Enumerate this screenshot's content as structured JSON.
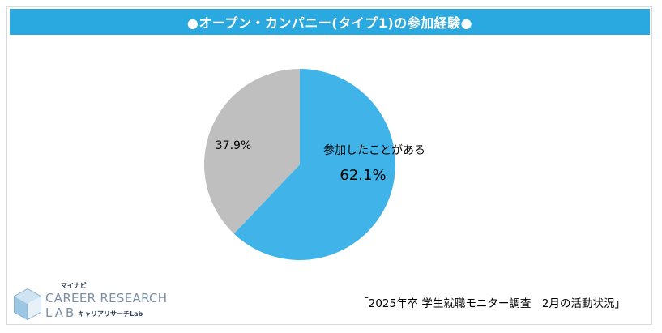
{
  "chart_data": {
    "type": "pie",
    "title": "●オープン・カンパニー(タイプ1)の参加経験●",
    "slices": [
      {
        "label": "参加したことがある",
        "value": 62.1,
        "value_label": "62.1%",
        "color": "#40b4e8"
      },
      {
        "label": "",
        "value": 37.9,
        "value_label": "37.9%",
        "color": "#bfbfbf"
      }
    ],
    "start_angle": "top (12 o'clock), clockwise"
  },
  "colors": {
    "title_bar": "#2aa8e0",
    "frame_border": "#d9d9d9"
  },
  "source_note": "「2025年卒 学生就職モニター調査　2月の活動状況」",
  "logo": {
    "brand_small": "マイナビ",
    "line1": "CAREER RESEARCH",
    "line2": "LAB",
    "sub": "キャリアリサーチLab"
  }
}
